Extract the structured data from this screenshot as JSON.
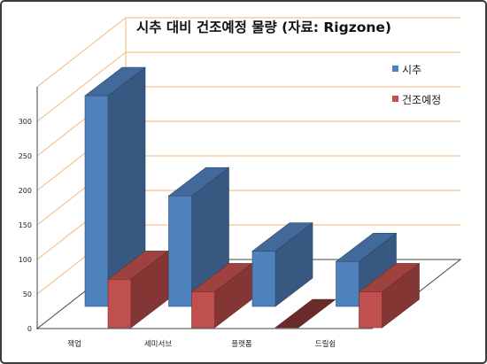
{
  "chart_data": {
    "type": "bar",
    "title": "시추 대비 건조예정 물량 (자료: Rigzone)",
    "categories": [
      "잭업",
      "세미서브",
      "플랫폼",
      "드릴쉽"
    ],
    "series": [
      {
        "name": "시추",
        "values": [
          305,
          160,
          80,
          65
        ],
        "color": "#4f81bd"
      },
      {
        "name": "건조예정",
        "values": [
          70,
          52,
          0,
          52
        ],
        "color": "#c0504d"
      }
    ],
    "yticks": [
      0,
      50,
      100,
      150,
      200,
      250,
      300
    ],
    "ylim": [
      0,
      350
    ],
    "grid": true,
    "gridline_color": "#f5b67a",
    "legend_position": "right",
    "xlabel": "",
    "ylabel": ""
  }
}
